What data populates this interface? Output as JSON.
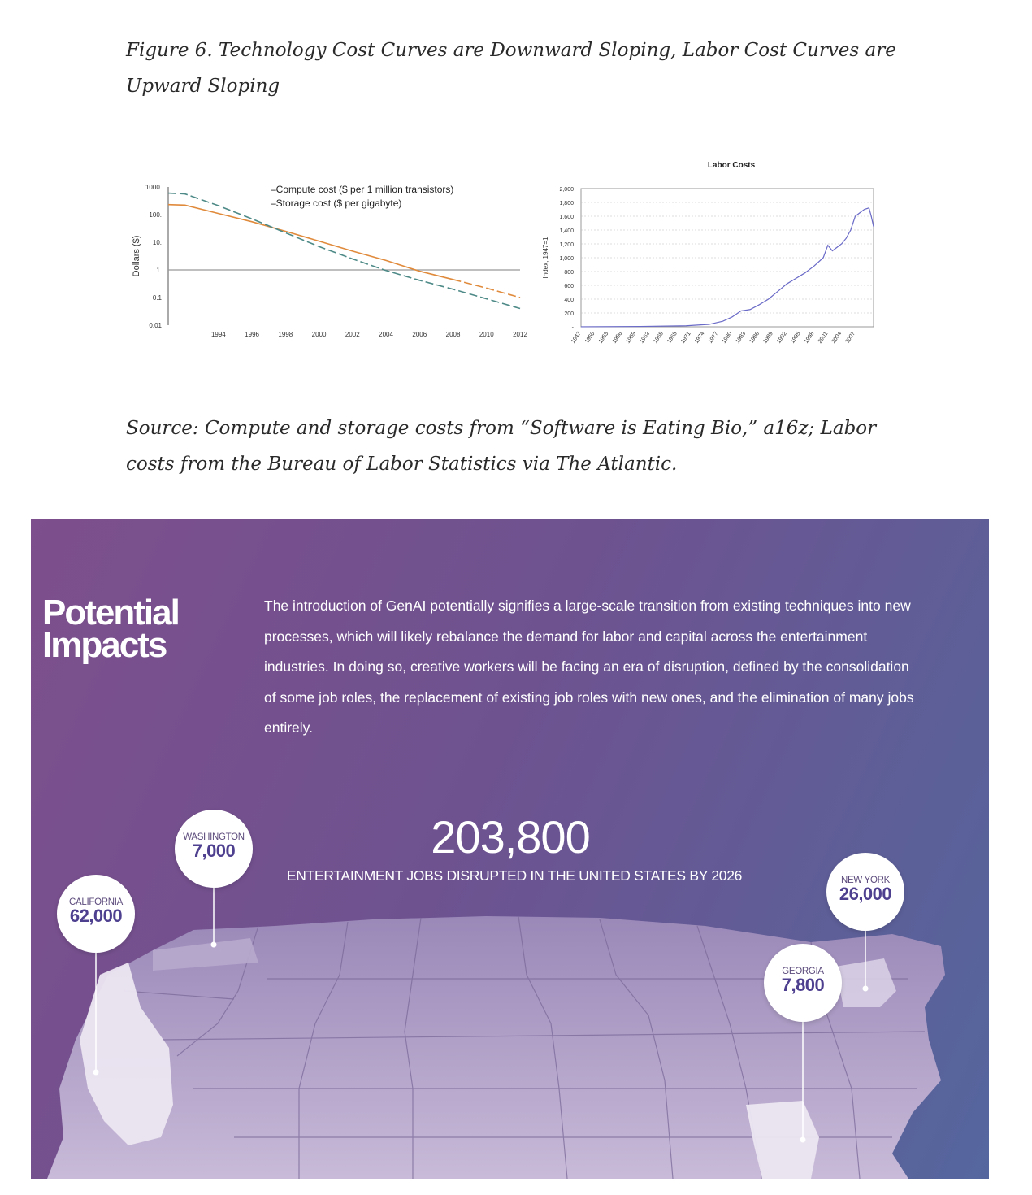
{
  "figure_caption": "Figure 6. Technology Cost Curves are Downward Sloping, Labor Cost Curves are Upward Sloping",
  "source_caption": "Source: Compute and storage costs from “Software is Eating Bio,” a16z; Labor costs from the Bureau of Labor Statistics via The Atlantic.",
  "chart_data": [
    {
      "type": "line",
      "title": "",
      "xlabel": "",
      "ylabel": "Dollars ($)",
      "yscale": "log",
      "ylim": [
        0.01,
        1000
      ],
      "xlim": [
        1991,
        2012
      ],
      "x_ticks": [
        "1994",
        "1996",
        "1998",
        "2000",
        "2002",
        "2004",
        "2006",
        "2008",
        "2010",
        "2012"
      ],
      "y_ticks": [
        "1000.",
        "100.",
        "10.",
        "1.",
        "0.1",
        "0.01"
      ],
      "reference_line": 1,
      "legend": [
        "–Compute cost ($ per 1 million transistors)",
        "–Storage cost ($ per gigabyte)"
      ],
      "legend_position": "top-center",
      "series": [
        {
          "name": "Compute cost ($ per 1 million transistors)",
          "color": "#e08a3c",
          "dashed_after": 2008,
          "x": [
            1991,
            1992,
            1994,
            1996,
            1998,
            2000,
            2002,
            2004,
            2006,
            2008,
            2010,
            2012
          ],
          "y": [
            230,
            220,
            110,
            55,
            25,
            11,
            4.8,
            2.2,
            0.9,
            0.45,
            0.22,
            0.1
          ]
        },
        {
          "name": "Storage cost ($ per gigabyte)",
          "color": "#4e8a87",
          "dashed": true,
          "x": [
            1991,
            1992,
            1994,
            1996,
            1998,
            2000,
            2002,
            2004,
            2006,
            2008,
            2010,
            2012
          ],
          "y": [
            600,
            560,
            210,
            70,
            22,
            7,
            2.5,
            0.95,
            0.42,
            0.2,
            0.09,
            0.04
          ]
        }
      ]
    },
    {
      "type": "line",
      "title": "Labor Costs",
      "xlabel": "",
      "ylabel": "Index, 1947=1",
      "ylim": [
        0,
        2000
      ],
      "y_ticks": [
        "2,000",
        "1,800",
        "1,600",
        "1,400",
        "1,200",
        "1,000",
        "800",
        "600",
        "400",
        "200",
        "-"
      ],
      "x_ticks": [
        "1947",
        "1950",
        "1953",
        "1956",
        "1959",
        "1962",
        "1965",
        "1968",
        "1971",
        "1974",
        "1977",
        "1980",
        "1983",
        "1986",
        "1989",
        "1992",
        "1995",
        "1998",
        "2001",
        "2004",
        "2007"
      ],
      "xlim": [
        1947,
        2011
      ],
      "series": [
        {
          "name": "Labor Costs",
          "color": "#6a6ac8",
          "x": [
            1947,
            1960,
            1970,
            1975,
            1978,
            1980,
            1982,
            1983,
            1984,
            1986,
            1988,
            1990,
            1992,
            1994,
            1996,
            1998,
            2000,
            2001,
            2002,
            2003,
            2004,
            2005,
            2006,
            2007,
            2008,
            2009,
            2010,
            2010.5,
            2011
          ],
          "y": [
            1,
            5,
            15,
            35,
            80,
            140,
            230,
            240,
            250,
            320,
            400,
            510,
            620,
            700,
            780,
            880,
            1000,
            1180,
            1100,
            1150,
            1200,
            1280,
            1400,
            1600,
            1650,
            1700,
            1720,
            1600,
            1450
          ]
        }
      ]
    }
  ],
  "infographic": {
    "title_line1": "Potential",
    "title_line2": "Impacts",
    "body": "The introduction of GenAI potentially signifies a large-scale transition from existing techniques into new processes, which will likely rebalance the demand for labor and capital across the entertainment industries. In doing so, creative workers will be facing an era of disruption, defined by the consolidation of some job roles, the replacement of existing job roles with new ones, and the elimination of many jobs entirely.",
    "big_number": "203,800",
    "big_label": "ENTERTAINMENT JOBS DISRUPTED IN THE UNITED STATES BY 2026",
    "pins": [
      {
        "state": "WASHINGTON",
        "value": "7,000"
      },
      {
        "state": "CALIFORNIA",
        "value": "62,000"
      },
      {
        "state": "NEW YORK",
        "value": "26,000"
      },
      {
        "state": "GEORGIA",
        "value": "7,800"
      }
    ]
  }
}
